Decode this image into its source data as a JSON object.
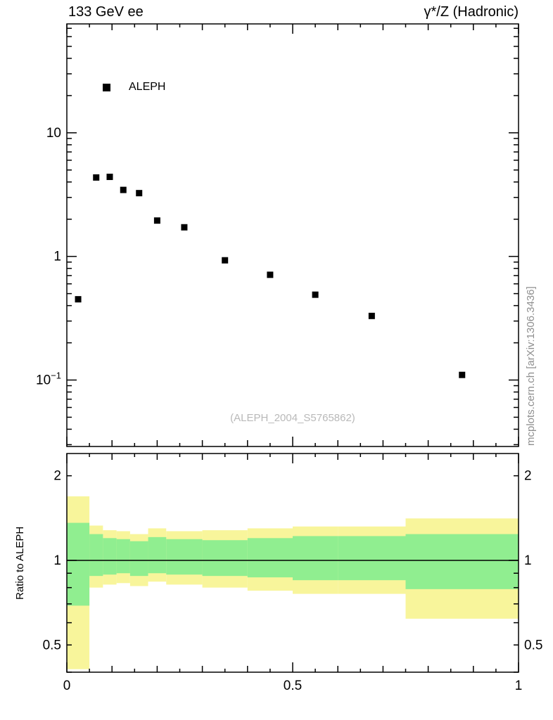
{
  "header": {
    "left_title": "133 GeV ee",
    "right_title": "γ*/Z (Hadronic)"
  },
  "legend": {
    "label": "ALEPH",
    "marker": "filled-square",
    "marker_color": "#000000"
  },
  "watermark": "(ALEPH_2004_S5765862)",
  "side_note": "mcplots.cern.ch [arXiv:1306.3436]",
  "colors": {
    "band_outer": "#f8f59b",
    "band_inner": "#90ee90",
    "marker": "#000000",
    "watermark": "#b9b9b9",
    "side_note": "#8f8f8f",
    "axis": "#000000"
  },
  "chart_data": [
    {
      "type": "scatter",
      "panel": "main",
      "title": "133 GeV ee",
      "subtitle": "γ*/Z (Hadronic)",
      "xlabel": "",
      "ylabel": "",
      "yscale": "log",
      "xlim": [
        0,
        1
      ],
      "ylim": [
        0.029,
        76
      ],
      "grid": false,
      "legend_position": "top-left-inside",
      "yticks": [
        {
          "value": 10,
          "label": "10"
        },
        {
          "value": 1,
          "label": "1"
        },
        {
          "value": 0.1,
          "label": "10",
          "exponent": "−1"
        }
      ],
      "xticks": [
        {
          "value": 0,
          "label": "0"
        },
        {
          "value": 0.5,
          "label": "0.5"
        },
        {
          "value": 1,
          "label": "1"
        }
      ],
      "series": [
        {
          "name": "ALEPH",
          "marker": "filled-square",
          "color": "#000000",
          "x": [
            0.025,
            0.065,
            0.095,
            0.125,
            0.16,
            0.2,
            0.26,
            0.35,
            0.45,
            0.55,
            0.675,
            0.875
          ],
          "y": [
            0.45,
            4.35,
            4.4,
            3.45,
            3.25,
            1.95,
            1.72,
            0.93,
            0.71,
            0.49,
            0.33,
            0.11
          ]
        }
      ]
    },
    {
      "type": "band",
      "panel": "ratio",
      "ylabel": "Ratio to ALEPH",
      "yscale": "log",
      "xlim": [
        0,
        1
      ],
      "ylim": [
        0.4,
        2.4
      ],
      "reference_line": 1,
      "yticks": [
        {
          "value": 0.5,
          "label": "0.5"
        },
        {
          "value": 1,
          "label": "1"
        },
        {
          "value": 2,
          "label": "2"
        }
      ],
      "xticks": [
        {
          "value": 0,
          "label": "0"
        },
        {
          "value": 0.5,
          "label": "0.5"
        },
        {
          "value": 1,
          "label": "1"
        }
      ],
      "bin_edges": [
        0,
        0.05,
        0.08,
        0.11,
        0.14,
        0.18,
        0.22,
        0.3,
        0.4,
        0.5,
        0.6,
        0.75,
        1.0
      ],
      "bands": [
        {
          "name": "outer-uncertainty",
          "color": "#f8f59b",
          "lo": [
            0.41,
            0.8,
            0.82,
            0.83,
            0.81,
            0.84,
            0.82,
            0.8,
            0.78,
            0.76,
            0.76,
            0.62
          ],
          "hi": [
            1.69,
            1.33,
            1.28,
            1.27,
            1.24,
            1.3,
            1.27,
            1.28,
            1.3,
            1.32,
            1.32,
            1.41
          ]
        },
        {
          "name": "inner-uncertainty",
          "color": "#90ee90",
          "lo": [
            0.69,
            0.88,
            0.89,
            0.9,
            0.88,
            0.9,
            0.89,
            0.88,
            0.87,
            0.85,
            0.85,
            0.79
          ],
          "hi": [
            1.36,
            1.24,
            1.2,
            1.19,
            1.17,
            1.21,
            1.19,
            1.18,
            1.2,
            1.22,
            1.22,
            1.24
          ]
        }
      ]
    }
  ]
}
